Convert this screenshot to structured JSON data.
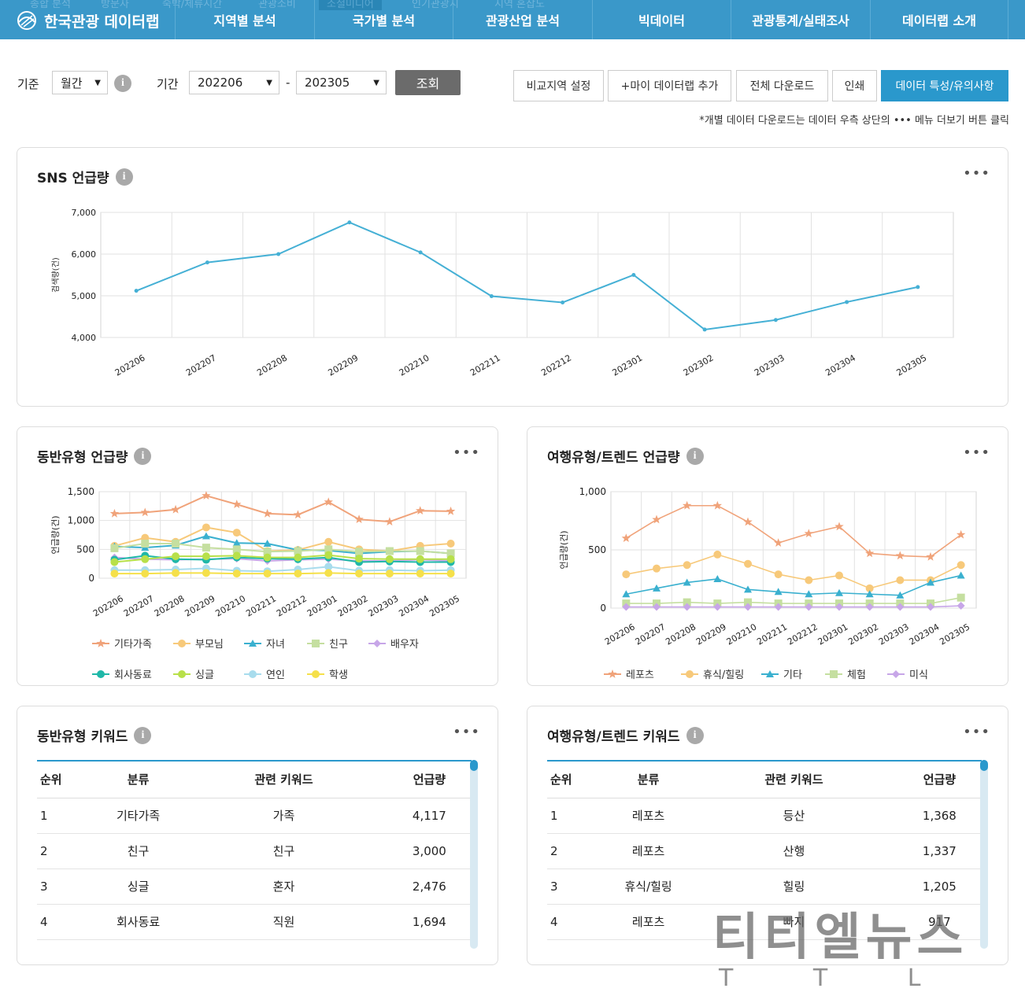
{
  "nav": {
    "logo_text": "한국관광 데이터랩",
    "items": [
      "지역별 분석",
      "국가별 분석",
      "관광산업 분석",
      "빅데이터",
      "관광통계/실태조사",
      "데이터랩 소개"
    ],
    "subtabs": [
      "종합 분석",
      "방문자",
      "숙박/체류시간",
      "관광소비",
      "소셜미디어",
      "인기관광지",
      "지역 혼잡도"
    ],
    "subtab_selected": "소셜미디어"
  },
  "controls": {
    "basis_label": "기준",
    "basis_value": "월간",
    "period_label": "기간",
    "period_from": "202206",
    "period_sep": "-",
    "period_to": "202305",
    "query_button": "조회",
    "buttons": [
      "비교지역 설정",
      "+마이 데이터랩 추가",
      "전체 다운로드",
      "인쇄",
      "데이터 특성/유의사항"
    ],
    "note": "*개별 데이터 다운로드는 데이터 우측 상단의 ••• 메뉴 더보기 버튼 클릭"
  },
  "colors": {
    "primary": "#3a98c9",
    "accent": "#2a98cc",
    "gray_btn": "#6b6b6b"
  },
  "sns_card": {
    "title": "SNS 언급량"
  },
  "companion_card": {
    "title": "동반유형 언급량"
  },
  "trend_card": {
    "title": "여행유형/트렌드 언급량"
  },
  "companion_kw": {
    "title": "동반유형 키워드",
    "headers": [
      "순위",
      "분류",
      "관련 키워드",
      "언급량"
    ],
    "rows": [
      [
        "1",
        "기타가족",
        "가족",
        "4,117"
      ],
      [
        "2",
        "친구",
        "친구",
        "3,000"
      ],
      [
        "3",
        "싱글",
        "혼자",
        "2,476"
      ],
      [
        "4",
        "회사동료",
        "직원",
        "1,694"
      ]
    ]
  },
  "trend_kw": {
    "title": "여행유형/트렌드 키워드",
    "headers": [
      "순위",
      "분류",
      "관련 키워드",
      "언급량"
    ],
    "rows": [
      [
        "1",
        "레포츠",
        "등산",
        "1,368"
      ],
      [
        "2",
        "레포츠",
        "산행",
        "1,337"
      ],
      [
        "3",
        "휴식/힐링",
        "힐링",
        "1,205"
      ],
      [
        "4",
        "레포츠",
        "빠지",
        "917"
      ]
    ]
  },
  "watermark": {
    "main": "티티엘뉴스",
    "sub": "T T L"
  },
  "chart_data": [
    {
      "type": "line",
      "title": "SNS 언급량",
      "ylabel": "검색량(건)",
      "x": [
        "202206",
        "202207",
        "202208",
        "202209",
        "202210",
        "202211",
        "202212",
        "202301",
        "202302",
        "202303",
        "202304",
        "202305"
      ],
      "ylim": [
        4000,
        7000
      ],
      "yticks": [
        "4,000",
        "5,000",
        "6,000",
        "7,000"
      ],
      "grid": true,
      "series": [
        {
          "color": "#45b0d5",
          "values": [
            5120,
            5800,
            6000,
            6760,
            6040,
            4990,
            4840,
            5500,
            4190,
            4420,
            4850,
            5210
          ]
        }
      ]
    },
    {
      "type": "line",
      "title": "동반유형 언급량",
      "ylabel": "언급량(건)",
      "x": [
        "202206",
        "202207",
        "202208",
        "202209",
        "202210",
        "202211",
        "202212",
        "202301",
        "202302",
        "202303",
        "202304",
        "202305"
      ],
      "ylim": [
        0,
        1500
      ],
      "yticks": [
        "0",
        "500",
        "1,000",
        "1,500"
      ],
      "grid": true,
      "legend_position": "bottom",
      "series": [
        {
          "name": "기타가족",
          "color": "#f0a37a",
          "marker": "star",
          "values": [
            1120,
            1140,
            1190,
            1430,
            1280,
            1120,
            1100,
            1320,
            1020,
            980,
            1170,
            1160
          ]
        },
        {
          "name": "부모님",
          "color": "#f7c97a",
          "marker": "circle",
          "values": [
            560,
            700,
            630,
            880,
            790,
            470,
            490,
            630,
            500,
            470,
            560,
            600
          ]
        },
        {
          "name": "자녀",
          "color": "#3ab0cf",
          "marker": "triangle",
          "values": [
            550,
            530,
            570,
            730,
            610,
            600,
            490,
            480,
            430,
            460,
            470,
            430
          ]
        },
        {
          "name": "친구",
          "color": "#c5dfa0",
          "marker": "square",
          "values": [
            520,
            600,
            600,
            530,
            500,
            460,
            470,
            500,
            460,
            470,
            470,
            430
          ]
        },
        {
          "name": "배우자",
          "color": "#c7a6e8",
          "marker": "diamond",
          "values": [
            360,
            330,
            320,
            330,
            340,
            300,
            320,
            330,
            300,
            300,
            320,
            300
          ]
        },
        {
          "name": "회사동료",
          "color": "#1fb8a8",
          "marker": "circle",
          "values": [
            320,
            390,
            330,
            320,
            360,
            340,
            330,
            360,
            280,
            290,
            280,
            280
          ]
        },
        {
          "name": "싱글",
          "color": "#b8e04a",
          "marker": "circle",
          "values": [
            280,
            330,
            380,
            380,
            390,
            360,
            360,
            400,
            340,
            330,
            330,
            330
          ]
        },
        {
          "name": "연인",
          "color": "#a8dced",
          "marker": "circle",
          "values": [
            140,
            140,
            150,
            170,
            130,
            120,
            150,
            200,
            130,
            140,
            130,
            140
          ]
        },
        {
          "name": "학생",
          "color": "#f5e04a",
          "marker": "circle",
          "values": [
            80,
            80,
            90,
            90,
            80,
            80,
            80,
            90,
            80,
            80,
            80,
            80
          ]
        }
      ]
    },
    {
      "type": "line",
      "title": "여행유형/트렌드 언급량",
      "ylabel": "언급량(건)",
      "x": [
        "202206",
        "202207",
        "202208",
        "202209",
        "202210",
        "202211",
        "202212",
        "202301",
        "202302",
        "202303",
        "202304",
        "202305"
      ],
      "ylim": [
        0,
        1000
      ],
      "yticks": [
        "0",
        "500",
        "1,000"
      ],
      "grid": true,
      "legend_position": "bottom",
      "series": [
        {
          "name": "레포츠",
          "color": "#f0a37a",
          "marker": "star",
          "values": [
            600,
            760,
            880,
            880,
            740,
            560,
            640,
            700,
            470,
            450,
            440,
            630
          ]
        },
        {
          "name": "휴식/힐링",
          "color": "#f7c97a",
          "marker": "circle",
          "values": [
            290,
            340,
            370,
            460,
            380,
            290,
            240,
            280,
            170,
            240,
            240,
            370
          ]
        },
        {
          "name": "기타",
          "color": "#3ab0cf",
          "marker": "triangle",
          "values": [
            120,
            170,
            220,
            250,
            160,
            140,
            120,
            130,
            120,
            110,
            220,
            280
          ]
        },
        {
          "name": "체험",
          "color": "#c5dfa0",
          "marker": "square",
          "values": [
            40,
            40,
            50,
            40,
            50,
            40,
            40,
            40,
            40,
            40,
            40,
            90
          ]
        },
        {
          "name": "미식",
          "color": "#c7a6e8",
          "marker": "diamond",
          "values": [
            10,
            10,
            10,
            10,
            10,
            10,
            10,
            10,
            10,
            10,
            10,
            20
          ]
        }
      ]
    }
  ]
}
